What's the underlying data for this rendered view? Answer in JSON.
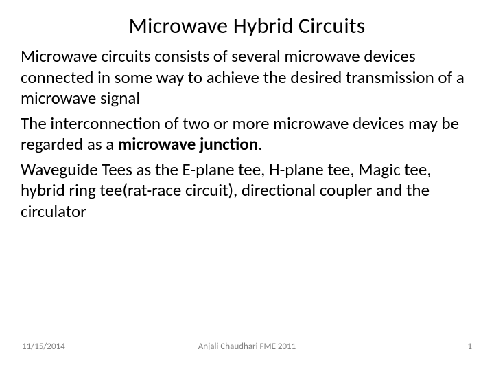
{
  "slide": {
    "title": "Microwave Hybrid Circuits",
    "paragraphs": [
      {
        "text": "Microwave circuits consists of several microwave devices connected in some way to achieve the desired transmission of a microwave signal"
      },
      {
        "prefix": "The interconnection of two or more microwave devices may be regarded as a ",
        "bold": "microwave junction",
        "suffix": "."
      },
      {
        "text": "Waveguide Tees as the E-plane tee, H-plane tee, Magic tee, hybrid ring tee(rat-race circuit), directional coupler and the circulator"
      }
    ],
    "footer": {
      "date": "11/15/2014",
      "author": "Anjali Chaudhari FME 2011",
      "page": "1"
    },
    "style": {
      "background_color": "#ffffff",
      "text_color": "#000000",
      "footer_color": "#808080",
      "title_fontsize": 32,
      "body_fontsize": 25,
      "footer_fontsize": 13
    }
  }
}
